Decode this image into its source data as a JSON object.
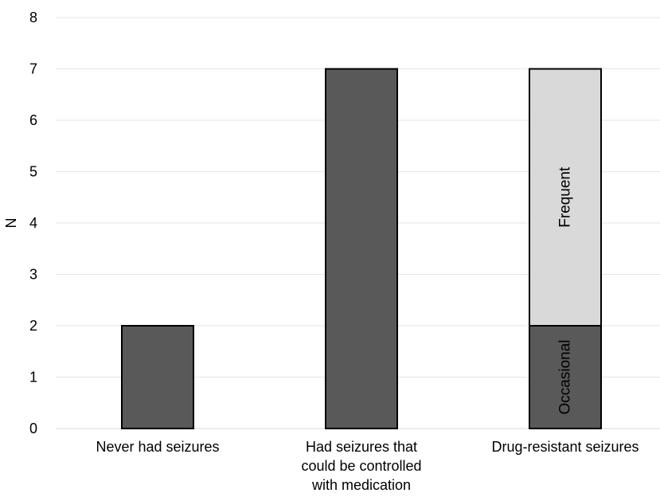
{
  "chart_data": {
    "type": "bar",
    "stacked": true,
    "categories": [
      [
        "Never had seizures"
      ],
      [
        "Had seizures that",
        "could be controlled",
        "with medication"
      ],
      [
        "Drug-resistant seizures"
      ]
    ],
    "series": [
      {
        "values": [
          2,
          7,
          2
        ],
        "color": "#595959",
        "segment_labels": [
          null,
          null,
          "Occasional"
        ]
      },
      {
        "values": [
          0,
          0,
          5
        ],
        "color": "#d9d9d9",
        "segment_labels": [
          null,
          null,
          "Frequent"
        ]
      }
    ],
    "ylabel": "N",
    "ylim": [
      0,
      8
    ],
    "yticks": [
      0,
      1,
      2,
      3,
      4,
      5,
      6,
      7,
      8
    ],
    "grid": true,
    "legend": "none"
  }
}
